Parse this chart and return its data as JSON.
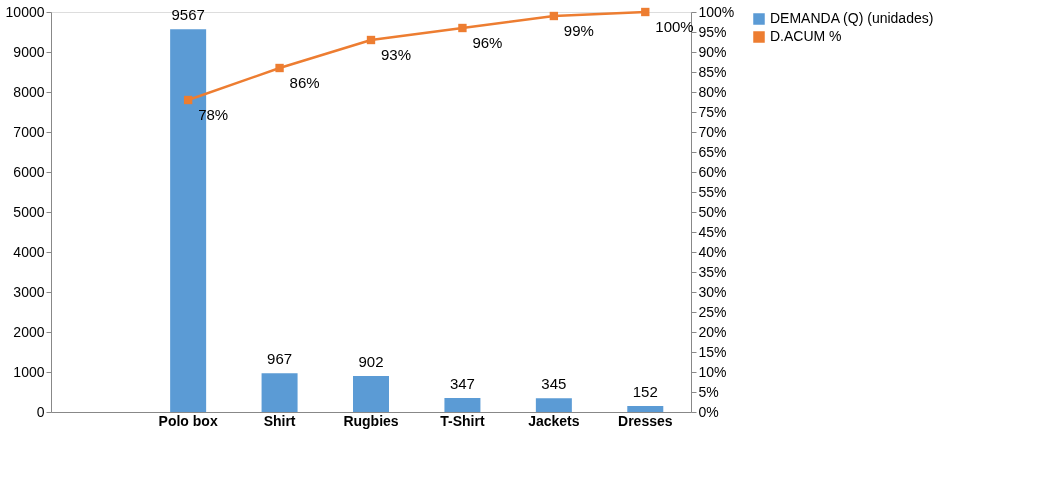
{
  "chart_data": {
    "type": "bar",
    "categories": [
      null,
      "Polo box",
      "Shirt",
      "Rugbies",
      "T-Shirt",
      "Jackets",
      "Dresses"
    ],
    "series": [
      {
        "name": "DEMANDA (Q) (unidades)",
        "color": "#5b9bd5",
        "values": [
          null,
          9567,
          967,
          902,
          347,
          345,
          152
        ],
        "value_labels": [
          null,
          "9567",
          "967",
          "902",
          "347",
          "345",
          "152"
        ]
      },
      {
        "name": "D.ACUM %",
        "type": "line",
        "axis": "y2",
        "color": "#ed7d31",
        "values": [
          null,
          78,
          86,
          93,
          96,
          99,
          100
        ],
        "value_labels": [
          null,
          "78%",
          "86%",
          "93%",
          "96%",
          "99%",
          "100%"
        ]
      }
    ],
    "ylim": [
      0,
      10000
    ],
    "yticks": [
      0,
      1000,
      2000,
      3000,
      4000,
      5000,
      6000,
      7000,
      8000,
      9000,
      10000
    ],
    "y2lim": [
      0,
      100
    ],
    "y2ticks": [
      {
        "value": 0,
        "label": "0%"
      },
      {
        "value": 5,
        "label": "5%"
      },
      {
        "value": 10,
        "label": "10%"
      },
      {
        "value": 15,
        "label": "15%"
      },
      {
        "value": 20,
        "label": "20%"
      },
      {
        "value": 25,
        "label": "25%"
      },
      {
        "value": 30,
        "label": "30%"
      },
      {
        "value": 35,
        "label": "35%"
      },
      {
        "value": 40,
        "label": "40%"
      },
      {
        "value": 45,
        "label": "45%"
      },
      {
        "value": 50,
        "label": "50%"
      },
      {
        "value": 55,
        "label": "55%"
      },
      {
        "value": 60,
        "label": "60%"
      },
      {
        "value": 65,
        "label": "65%"
      },
      {
        "value": 70,
        "label": "70%"
      },
      {
        "value": 75,
        "label": "75%"
      },
      {
        "value": 80,
        "label": "80%"
      },
      {
        "value": 85,
        "label": "85%"
      },
      {
        "value": 90,
        "label": "90%"
      },
      {
        "value": 95,
        "label": "95%"
      },
      {
        "value": 100,
        "label": "100%"
      }
    ],
    "marker": "square",
    "legend": "right",
    "grid": false
  }
}
